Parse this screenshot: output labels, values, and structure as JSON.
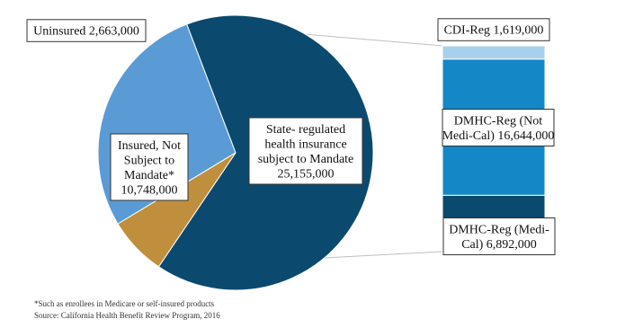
{
  "chart_data": {
    "type": "pie",
    "title": "",
    "pie": {
      "slices": [
        {
          "label_lines": [
            "State- regulated",
            "health insurance",
            "subject to Mandate",
            "25,155,000"
          ],
          "value": 25155000,
          "color": "#0b4a6e"
        },
        {
          "label_lines": [
            "Insured, Not",
            "Subject to",
            "Mandate*",
            "10,748,000"
          ],
          "value": 10748000,
          "color": "#5b9bd5"
        },
        {
          "label_lines": [
            "Uninsured 2,663,000"
          ],
          "value": 2663000,
          "color": "#bf8f3e"
        }
      ]
    },
    "breakdown": {
      "of_slice": "State- regulated health insurance subject to Mandate",
      "segments": [
        {
          "label_lines": [
            "DMHC-Reg (Medi-",
            "Cal) 6,892,000"
          ],
          "value": 6892000,
          "color": "#0b4a6e"
        },
        {
          "label_lines": [
            "DMHC-Reg (Not",
            "Medi-Cal) 16,644,000"
          ],
          "value": 16644000,
          "color": "#1487c6"
        },
        {
          "label_lines": [
            "CDI-Reg 1,619,000"
          ],
          "value": 1619000,
          "color": "#a8d0ec"
        }
      ]
    }
  },
  "footnotes": {
    "note": "*Such as enrollees in Medicare or self-insured products",
    "source": "Source: California Health Benefit Review Program, 2016"
  }
}
